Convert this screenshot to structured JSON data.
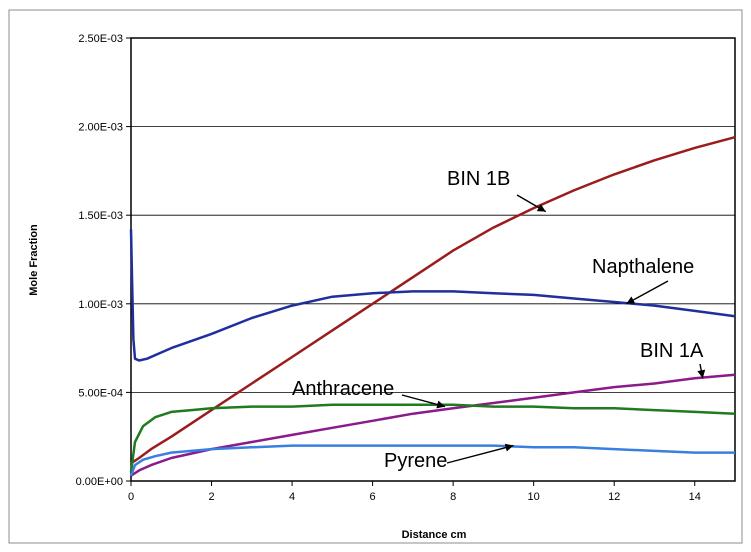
{
  "chart_data": {
    "type": "line",
    "title": "",
    "xlabel": "Distance cm",
    "ylabel": "Mole Fraction",
    "xlim": [
      0,
      15
    ],
    "ylim": [
      0,
      0.0025
    ],
    "grid": "horizontal",
    "legend": "none",
    "x_ticks": [
      "0",
      "2",
      "4",
      "6",
      "8",
      "10",
      "12",
      "14"
    ],
    "x_tick_values": [
      0,
      2,
      4,
      6,
      8,
      10,
      12,
      14
    ],
    "y_ticks": [
      "0.00E+00",
      "5.00E-04",
      "1.00E-03",
      "1.50E-03",
      "2.00E-03",
      "2.50E-03"
    ],
    "y_tick_values": [
      0,
      0.0005,
      0.001,
      0.0015,
      0.002,
      0.0025
    ],
    "series": [
      {
        "name": "BIN 1B",
        "color": "#9b1c1c",
        "x": [
          0,
          0.2,
          0.5,
          1,
          2,
          3,
          4,
          5,
          6,
          7,
          8,
          9,
          10,
          11,
          12,
          13,
          14,
          15
        ],
        "y": [
          0.0001,
          0.00013,
          0.00018,
          0.00025,
          0.0004,
          0.00055,
          0.0007,
          0.00085,
          0.001,
          0.00115,
          0.0013,
          0.00143,
          0.00154,
          0.00164,
          0.00173,
          0.00181,
          0.00188,
          0.00194
        ]
      },
      {
        "name": "Napthalene",
        "color": "#1f2f9e",
        "x": [
          0,
          0.03,
          0.06,
          0.1,
          0.2,
          0.4,
          0.7,
          1,
          2,
          3,
          4,
          5,
          6,
          7,
          8,
          9,
          10,
          11,
          12,
          13,
          14,
          15
        ],
        "y": [
          0.00142,
          0.0011,
          0.0008,
          0.00069,
          0.00068,
          0.00069,
          0.00072,
          0.00075,
          0.00083,
          0.00092,
          0.00099,
          0.00104,
          0.00106,
          0.00107,
          0.00107,
          0.00106,
          0.00105,
          0.00103,
          0.00101,
          0.00099,
          0.00096,
          0.00093
        ]
      },
      {
        "name": "BIN 1A",
        "color": "#8b1a8b",
        "x": [
          0,
          0.2,
          0.5,
          1,
          2,
          3,
          4,
          5,
          6,
          7,
          8,
          9,
          10,
          11,
          12,
          13,
          14,
          15
        ],
        "y": [
          3e-05,
          6e-05,
          9e-05,
          0.00013,
          0.00018,
          0.00022,
          0.00026,
          0.0003,
          0.00034,
          0.00038,
          0.00041,
          0.00044,
          0.00047,
          0.0005,
          0.00053,
          0.00055,
          0.00058,
          0.0006
        ]
      },
      {
        "name": "Anthracene",
        "color": "#1e7b1e",
        "x": [
          0,
          0.1,
          0.3,
          0.6,
          1,
          1.5,
          2,
          3,
          4,
          5,
          6,
          7,
          8,
          9,
          10,
          11,
          12,
          13,
          14,
          15
        ],
        "y": [
          5e-05,
          0.00022,
          0.00031,
          0.00036,
          0.00039,
          0.0004,
          0.00041,
          0.00042,
          0.00042,
          0.00043,
          0.00043,
          0.00043,
          0.00043,
          0.00042,
          0.00042,
          0.00041,
          0.00041,
          0.0004,
          0.00039,
          0.00038
        ]
      },
      {
        "name": "Pyrene",
        "color": "#3a7fe0",
        "x": [
          0,
          0.1,
          0.3,
          0.6,
          1,
          1.5,
          2,
          3,
          4,
          5,
          6,
          7,
          8,
          9,
          10,
          11,
          12,
          13,
          14,
          15
        ],
        "y": [
          3e-05,
          9e-05,
          0.00012,
          0.00014,
          0.00016,
          0.00017,
          0.00018,
          0.00019,
          0.0002,
          0.0002,
          0.0002,
          0.0002,
          0.0002,
          0.0002,
          0.00019,
          0.00019,
          0.00018,
          0.00017,
          0.00016,
          0.00016
        ]
      }
    ],
    "annotations": [
      {
        "text": "BIN 1B",
        "target_x": 10.3,
        "target_y": 0.00152
      },
      {
        "text": "Napthalene",
        "target_x": 12.3,
        "target_y": 0.001
      },
      {
        "text": "BIN 1A",
        "target_x": 14.2,
        "target_y": 0.00058
      },
      {
        "text": "Anthracene",
        "target_x": 7.8,
        "target_y": 0.00042
      },
      {
        "text": "Pyrene",
        "target_x": 9.5,
        "target_y": 0.0002
      }
    ]
  }
}
